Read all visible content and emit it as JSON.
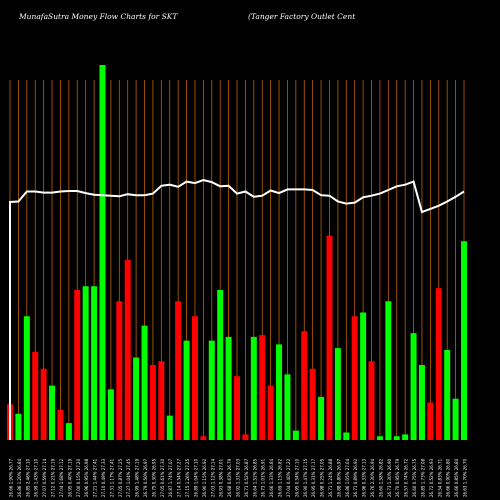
{
  "header": {
    "site": "MunafaSutra  Money Flow  Charts for SKT",
    "company": "(Tanger Factory Outlet Cent"
  },
  "colors": {
    "background": "#000000",
    "up": "#00ff00",
    "down": "#ff0000",
    "gridline": "#c06000",
    "price_line": "#ffffff"
  },
  "chart_data": {
    "type": "bar",
    "title": "MunafaSutra  Money Flow  Charts for SKT",
    "subtitle": "(Tanger Factory Outlet Cent",
    "ylim": [
      0,
      100
    ],
    "categories": [
      "26.66 1.90% 26.77",
      "26.86 1.20% 26.84",
      "26.85 2.46% 27.10",
      "26.99 1.43% 27.10",
      "27.07 0.59% 27.14",
      "27.12 0.21% 27.19",
      "27.04 1.68% 27.12",
      "26.95 0.40% 27.19",
      "27.00 0.15% 27.20",
      "26.96 0.95% 26.98",
      "27.21 1.44% 27.41",
      "27.10 0.49% 27.33",
      "27.31 1.17% 27.41",
      "27.05 0.87% 27.25",
      "27.27 1.04% 27.45",
      "26.99 1.48% 27.19",
      "26.79 0.50% 26.97",
      "26.75 0.30% 26.95",
      "27.05 0.61% 27.30",
      "26.87 1.74% 27.07",
      "27.14 0.54% 27.27",
      "27.15 1.26% 27.25",
      "26.89 1.04% 27.10",
      "26.90 1.15% 26.92",
      "27.03 1.12% 27.14",
      "26.93 0.38% 27.01",
      "26.68 0.63% 26.79",
      "26.92 1.31% 27.03",
      "26.71 0.52% 26.87",
      "26.64 1.52% 26.85",
      "26.73 1.01% 26.91",
      "26.66 1.33% 26.84",
      "26.69 1.15% 26.82",
      "27.04 0.40% 27.22",
      "26.95 0.54% 27.10",
      "26.90 1.47% 27.15",
      "26.95 0.31% 27.17",
      "26.98 0.25% 27.05",
      "26.71 1.24% 26.88",
      "26.88 0.80% 26.97",
      "26.86 1.05% 27.04",
      "26.71 0.89% 26.92",
      "26.96 0.33% 27.13",
      "26.76 2.30% 26.94",
      "26.60 1.58% 26.82",
      "26.73 1.30% 26.90",
      "26.70 0.95% 26.79",
      "26.57 0.74% 26.72",
      "26.60 0.75% 26.75",
      "26.85 1.73% 27.08",
      "26.72 0.52% 26.93",
      "26.54 0.83% 26.71",
      "26.66 0.90% 26.80",
      "26.66 0.85% 26.84",
      "26.63 1.70% 26.70"
    ],
    "colors": [
      "down",
      "up",
      "up",
      "down",
      "down",
      "up",
      "down",
      "up",
      "down",
      "up",
      "up",
      "up",
      "up",
      "down",
      "down",
      "up",
      "up",
      "down",
      "down",
      "up",
      "down",
      "up",
      "down",
      "down",
      "up",
      "up",
      "up",
      "down",
      "down",
      "up",
      "down",
      "down",
      "up",
      "up",
      "up",
      "down",
      "down",
      "up",
      "down",
      "up",
      "up",
      "down",
      "up",
      "down",
      "up",
      "up",
      "up",
      "up",
      "up",
      "up",
      "down",
      "down",
      "up",
      "up",
      "up"
    ],
    "values": [
      9.5,
      7,
      33,
      23.5,
      19,
      14.5,
      8,
      4.5,
      40,
      41,
      41,
      100,
      13.5,
      37,
      48,
      22,
      30.5,
      20,
      21,
      6.5,
      37,
      26.5,
      33,
      1,
      26.5,
      40,
      27.5,
      17,
      1.5,
      27.5,
      28,
      14.5,
      25.5,
      17.5,
      2.5,
      29,
      19,
      11.5,
      54.5,
      24.5,
      2,
      33,
      34,
      21,
      1,
      37,
      1,
      1.5,
      28.5,
      20,
      10,
      40.5,
      24,
      11,
      53
    ],
    "price": [
      26.85,
      26.86,
      27.05,
      27.05,
      27.03,
      27.03,
      27.05,
      27.06,
      27.06,
      27.02,
      26.99,
      26.98,
      26.97,
      26.96,
      27.0,
      26.98,
      26.98,
      27.01,
      27.16,
      27.18,
      27.14,
      27.24,
      27.21,
      27.27,
      27.23,
      27.15,
      27.16,
      27.01,
      27.05,
      26.95,
      26.97,
      27.07,
      27.02,
      27.09,
      27.09,
      27.09,
      27.08,
      26.98,
      26.97,
      26.86,
      26.82,
      26.84,
      26.94,
      26.97,
      27.01,
      27.08,
      27.15,
      27.18,
      27.24,
      26.66,
      26.72,
      26.78,
      26.86,
      26.95,
      27.05
    ],
    "grid": true,
    "legend": "none"
  }
}
